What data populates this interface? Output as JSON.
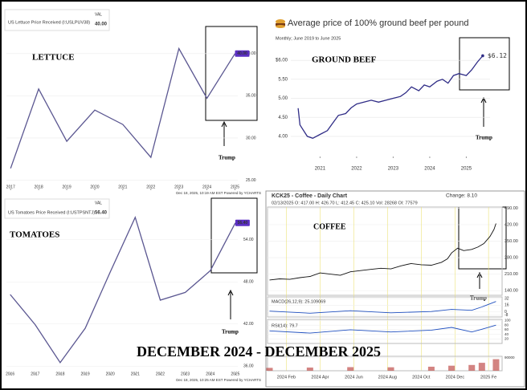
{
  "banner": "DECEMBER 2024 - DECEMBER 2025",
  "chart_data": [
    {
      "type": "line",
      "title": "US Lettuce Price Received (I:USLPUV38)",
      "legend_label": "VAL",
      "legend_value": "40.00",
      "annotation": "LETTUCE",
      "note": "Trump",
      "footer": "Dec 18, 2025, 10:19 AM EST Powered by YCHARTS",
      "color": "#5b5791",
      "x": [
        2017,
        2018,
        2019,
        2020,
        2021,
        2022,
        2023,
        2024,
        2025
      ],
      "values": [
        26.4,
        35.8,
        29.6,
        33.3,
        31.6,
        27.7,
        40.6,
        34.7,
        40
      ],
      "value_label": "40.00",
      "xlim": [
        2016.85,
        2025.1
      ],
      "ylim": [
        24,
        43.5
      ],
      "xticks": [
        2017,
        2018,
        2019,
        2020,
        2021,
        2022,
        2023,
        2024,
        2025
      ],
      "yticks": [
        {
          "value": 25,
          "label": "25.00"
        },
        {
          "value": 30,
          "label": "30.00"
        },
        {
          "value": 35,
          "label": "35.00"
        },
        {
          "value": 40,
          "label": "40.00"
        }
      ]
    },
    {
      "type": "line",
      "title": "Average price of 100% ground beef per pound",
      "subtitle": "Monthly; June 2019 to June 2025",
      "annotation": "GROUND BEEF",
      "note": "Trump",
      "color": "#2f2c86",
      "x": [
        2020.4,
        2020.45,
        2020.65,
        2020.8,
        2021.0,
        2021.2,
        2021.35,
        2021.5,
        2021.7,
        2021.85,
        2022.0,
        2022.2,
        2022.4,
        2022.6,
        2022.8,
        2023.0,
        2023.2,
        2023.35,
        2023.5,
        2023.7,
        2023.85,
        2024.0,
        2024.2,
        2024.35,
        2024.5,
        2024.65,
        2024.8,
        2025.0,
        2025.15,
        2025.3,
        2025.45
      ],
      "values": [
        4.74,
        4.3,
        4.0,
        3.95,
        4.05,
        4.15,
        4.35,
        4.55,
        4.6,
        4.75,
        4.85,
        4.9,
        4.95,
        4.9,
        4.95,
        5.0,
        5.05,
        5.15,
        5.3,
        5.2,
        5.35,
        5.3,
        5.45,
        5.5,
        5.4,
        5.6,
        5.65,
        5.6,
        5.75,
        5.95,
        6.12
      ],
      "value_label": "$6.12",
      "xlim": [
        2020.2,
        2025.65
      ],
      "ylim": [
        3.47,
        6.32
      ],
      "xticks": [
        2021,
        2022,
        2023,
        2024,
        2025
      ],
      "yticks": [
        {
          "value": 4,
          "label": "4.00"
        },
        {
          "value": 4.5,
          "label": "4.50"
        },
        {
          "value": 5,
          "label": "5.00"
        },
        {
          "value": 5.5,
          "label": "5.50"
        },
        {
          "value": 6,
          "label": "$6.00"
        }
      ]
    },
    {
      "type": "line",
      "title": "US Tomatoes Price Received (I:USTPSNTJ)",
      "legend_label": "VAL",
      "legend_value": "56.40",
      "annotation": "TOMATOES",
      "note": "Trump",
      "footer": "Dec 18, 2025, 10:25 AM EST Powered by YCHARTS",
      "color": "#5b5791",
      "x": [
        2016,
        2017,
        2018,
        2019,
        2020,
        2021,
        2022,
        2023,
        2024,
        2025
      ],
      "values": [
        46.2,
        41.9,
        36.5,
        41.4,
        49.4,
        57.2,
        45.4,
        46.5,
        49.6,
        56.4
      ],
      "value_label": "56.40",
      "xlim": [
        2015.85,
        2025.1
      ],
      "ylim": [
        35,
        59
      ],
      "xticks": [
        2016,
        2017,
        2018,
        2019,
        2020,
        2021,
        2022,
        2023,
        2024,
        2025
      ],
      "yticks": [
        {
          "value": 36,
          "label": "36.00"
        },
        {
          "value": 42,
          "label": "42.00"
        },
        {
          "value": 48,
          "label": "48.00"
        },
        {
          "value": 54,
          "label": "54.00"
        }
      ]
    },
    {
      "type": "line",
      "title": "KCK25 - Coffee - Daily Chart",
      "change": "Change: 8.10",
      "subtitle": "02/13/2025 O: 417.00 H: 426.70 L: 412.45 C: 425.10 Vol: 28268 OI: 77579",
      "annotation": "COFFEE",
      "note": "Trump",
      "color": "#111111",
      "x": [
        2024.0,
        2024.05,
        2024.1,
        2024.15,
        2024.2,
        2024.25,
        2024.3,
        2024.35,
        2024.4,
        2024.45,
        2024.5,
        2024.55,
        2024.6,
        2024.65,
        2024.7,
        2024.75,
        2024.8,
        2024.85,
        2024.88,
        2024.9,
        2024.93,
        2024.96,
        2025.0,
        2025.03,
        2025.06,
        2025.09,
        2025.11,
        2025.12
      ],
      "values": [
        185,
        190,
        188,
        195,
        200,
        215,
        210,
        205,
        220,
        225,
        230,
        235,
        232,
        245,
        255,
        250,
        248,
        260,
        275,
        300,
        320,
        310,
        315,
        325,
        340,
        370,
        400,
        425.1
      ],
      "xlim": [
        2023.99,
        2025.15
      ],
      "ylim": [
        120,
        495
      ],
      "xticks": [
        {
          "value": 2024.083,
          "label": "2024 Feb"
        },
        {
          "value": 2024.25,
          "label": "2024 Apr"
        },
        {
          "value": 2024.417,
          "label": "2024 Jun"
        },
        {
          "value": 2024.583,
          "label": "2024 Aug"
        },
        {
          "value": 2024.75,
          "label": "2024 Oct"
        },
        {
          "value": 2024.917,
          "label": "2024 Dec"
        },
        {
          "value": 2025.083,
          "label": "2025 Fe"
        }
      ],
      "yticks": [
        {
          "value": 140,
          "label": "140.00"
        },
        {
          "value": 210,
          "label": "210.00"
        },
        {
          "value": 280,
          "label": "280.00"
        },
        {
          "value": 350,
          "label": "350.00"
        },
        {
          "value": 420,
          "label": "420.00"
        },
        {
          "value": 490,
          "label": "490.00"
        }
      ]
    },
    {
      "type": "line",
      "title": "MACD(26,12,9): 25.109069",
      "color": "#1f4fbf",
      "x": [
        2024.0,
        2024.2,
        2024.4,
        2024.6,
        2024.8,
        2024.9,
        2025.0,
        2025.05,
        2025.12
      ],
      "values": [
        2,
        -3,
        3,
        -2,
        1,
        6,
        4,
        12,
        25.1
      ],
      "xlim": [
        2023.99,
        2025.15
      ],
      "ylim": [
        -12,
        36
      ],
      "yticks": [
        -8,
        0,
        16,
        32
      ]
    },
    {
      "type": "line",
      "title": "RSI(14): 79.7",
      "color": "#1f4fbf",
      "x": [
        2024.0,
        2024.2,
        2024.4,
        2024.6,
        2024.8,
        2024.9,
        2025.0,
        2025.05,
        2025.12
      ],
      "values": [
        55,
        45,
        60,
        50,
        58,
        70,
        50,
        62,
        79.7
      ],
      "xlim": [
        2023.99,
        2025.15
      ],
      "ylim": [
        0,
        105
      ],
      "yticks": [
        20,
        40,
        60,
        80,
        100
      ]
    },
    {
      "type": "bar",
      "color": "#c0504d",
      "x": [
        2024.0,
        2024.2,
        2024.4,
        2024.6,
        2024.8,
        2024.9,
        2025.0,
        2025.05,
        2025.12
      ],
      "values": [
        20000,
        22000,
        25000,
        24000,
        28000,
        35000,
        40000,
        55000,
        80000
      ],
      "xlim": [
        2023.99,
        2025.15
      ],
      "ylim": [
        0,
        100000
      ],
      "yticks": [
        90000
      ]
    }
  ]
}
